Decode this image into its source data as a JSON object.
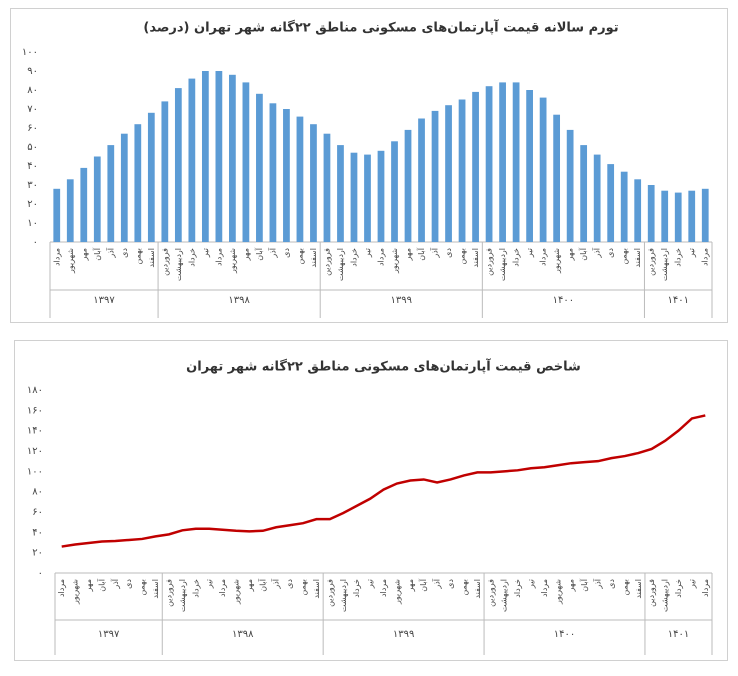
{
  "chart_data": [
    {
      "type": "bar",
      "title": "تورم سالانه قیمت آپارتمان‌های مسکونی مناطق ۲۲گانه شهر تهران (درصد)",
      "color": "#5b9bd5",
      "grid": false,
      "groups": [
        {
          "name": "۱۳۹۷",
          "categories": [
            "مرداد",
            "شهریور",
            "مهر",
            "آبان",
            "آذر",
            "دی",
            "بهمن",
            "اسفند"
          ]
        },
        {
          "name": "۱۳۹۸",
          "categories": [
            "فروردین",
            "اردیبهشت",
            "خرداد",
            "تیر",
            "مرداد",
            "شهریور",
            "مهر",
            "آبان",
            "آذر",
            "دی",
            "بهمن",
            "اسفند"
          ]
        },
        {
          "name": "۱۳۹۹",
          "categories": [
            "فروردین",
            "اردیبهشت",
            "خرداد",
            "تیر",
            "مرداد",
            "شهریور",
            "مهر",
            "آبان",
            "آذر",
            "دی",
            "بهمن",
            "اسفند"
          ]
        },
        {
          "name": "۱۴۰۰",
          "categories": [
            "فروردین",
            "اردیبهشت",
            "خرداد",
            "تیر",
            "مرداد",
            "شهریور",
            "مهر",
            "آبان",
            "آذر",
            "دی",
            "بهمن",
            "اسفند"
          ]
        },
        {
          "name": "۱۴۰۱",
          "categories": [
            "فروردین",
            "اردیبهشت",
            "خرداد",
            "تیر",
            "مرداد"
          ]
        }
      ],
      "values": [
        28,
        33,
        39,
        45,
        51,
        57,
        62,
        68,
        74,
        81,
        86,
        90,
        90,
        88,
        84,
        78,
        73,
        70,
        66,
        62,
        57,
        51,
        47,
        46,
        48,
        53,
        59,
        65,
        69,
        72,
        75,
        79,
        82,
        84,
        84,
        80,
        76,
        67,
        59,
        51,
        46,
        41,
        37,
        33,
        30,
        27,
        26,
        27,
        28
      ],
      "ylim": [
        0,
        100
      ],
      "yticks": [
        {
          "value": 0,
          "label": "۰"
        },
        {
          "value": 10,
          "label": "۱۰"
        },
        {
          "value": 20,
          "label": "۲۰"
        },
        {
          "value": 30,
          "label": "۳۰"
        },
        {
          "value": 40,
          "label": "۴۰"
        },
        {
          "value": 50,
          "label": "۵۰"
        },
        {
          "value": 60,
          "label": "۶۰"
        },
        {
          "value": 70,
          "label": "۷۰"
        },
        {
          "value": 80,
          "label": "۸۰"
        },
        {
          "value": 90,
          "label": "۹۰"
        },
        {
          "value": 100,
          "label": "۱۰۰"
        }
      ]
    },
    {
      "type": "line",
      "title": "شاخص قیمت آپارتمان‌های مسکونی مناطق ۲۲گانه شهر تهران",
      "color": "#c00000",
      "grid": false,
      "groups": [
        {
          "name": "۱۳۹۷",
          "categories": [
            "مرداد",
            "شهریور",
            "مهر",
            "آبان",
            "آذر",
            "دی",
            "بهمن",
            "اسفند"
          ]
        },
        {
          "name": "۱۳۹۸",
          "categories": [
            "فروردین",
            "اردیبهشت",
            "خرداد",
            "تیر",
            "مرداد",
            "شهریور",
            "مهر",
            "آبان",
            "آذر",
            "دی",
            "بهمن",
            "اسفند"
          ]
        },
        {
          "name": "۱۳۹۹",
          "categories": [
            "فروردین",
            "اردیبهشت",
            "خرداد",
            "تیر",
            "مرداد",
            "شهریور",
            "مهر",
            "آبان",
            "آذر",
            "دی",
            "بهمن",
            "اسفند"
          ]
        },
        {
          "name": "۱۴۰۰",
          "categories": [
            "فروردین",
            "اردیبهشت",
            "خرداد",
            "تیر",
            "مرداد",
            "شهریور",
            "مهر",
            "آبان",
            "آذر",
            "دی",
            "بهمن",
            "اسفند"
          ]
        },
        {
          "name": "۱۴۰۱",
          "categories": [
            "فروردین",
            "اردیبهشت",
            "خرداد",
            "تیر",
            "مرداد"
          ]
        }
      ],
      "values": [
        26,
        28,
        29.5,
        31,
        31.5,
        32.5,
        33.5,
        36,
        38,
        42,
        43.5,
        43.5,
        42.5,
        41.5,
        41,
        41.5,
        45,
        47,
        49,
        53,
        53,
        59,
        66,
        73,
        82,
        88,
        91,
        92,
        89,
        92,
        96,
        99,
        99,
        100,
        101,
        103,
        104,
        106,
        108,
        109,
        110,
        113,
        115,
        118,
        122,
        130,
        140,
        152,
        155
      ],
      "ylim": [
        0,
        180
      ],
      "yticks": [
        {
          "value": 0,
          "label": "۰"
        },
        {
          "value": 20,
          "label": "۲۰"
        },
        {
          "value": 40,
          "label": "۴۰"
        },
        {
          "value": 60,
          "label": "۶۰"
        },
        {
          "value": 80,
          "label": "۸۰"
        },
        {
          "value": 100,
          "label": "۱۰۰"
        },
        {
          "value": 120,
          "label": "۱۲۰"
        },
        {
          "value": 140,
          "label": "۱۴۰"
        },
        {
          "value": 160,
          "label": "۱۶۰"
        },
        {
          "value": 180,
          "label": "۱۸۰"
        }
      ]
    }
  ]
}
